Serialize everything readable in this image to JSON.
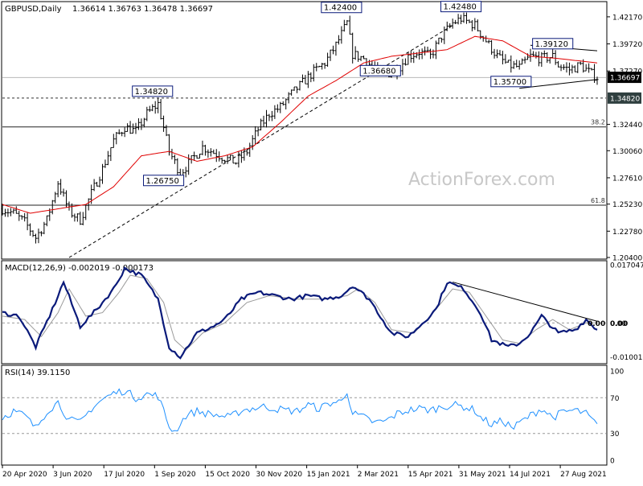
{
  "header": {
    "symbol": "GBPUSD,Daily",
    "ohlc": "1.36614 1.36763 1.36478 1.36697"
  },
  "watermark": "ActionForex.com",
  "colors": {
    "candle": "#000000",
    "ma": "#e00000",
    "macd": "#0a1a7a",
    "signal": "#9a9a9a",
    "rsi": "#1e90ff",
    "label_border": "#0a1a7a",
    "grid_dash": "#333333"
  },
  "chart_data": [
    {
      "type": "candlestick",
      "ylim": [
        1.204,
        1.434
      ],
      "yticks": [
        "1.42170",
        "1.39720",
        "1.37270",
        "1.32440",
        "1.30060",
        "1.27610",
        "1.25230",
        "1.22780",
        "1.20400"
      ],
      "current_price": {
        "label": "1.36697",
        "value": 1.36697
      },
      "levels": [
        {
          "value": 1.3482,
          "label": "1.34820",
          "style": "dashed"
        },
        {
          "value": 1.3668,
          "label": "",
          "style": "solid-grey"
        },
        {
          "value": 1.3221,
          "label": "38.2",
          "style": "solid"
        },
        {
          "value": 1.2513,
          "label": "61.8",
          "style": "solid"
        }
      ],
      "annotations": [
        {
          "text": "1.42400",
          "x": 122,
          "y": 1.424
        },
        {
          "text": "1.42480",
          "x": 165,
          "y": 1.4248
        },
        {
          "text": "1.39120",
          "x": 198,
          "y": 1.3912
        },
        {
          "text": "1.36680",
          "x": 136,
          "y": 1.3668
        },
        {
          "text": "1.35700",
          "x": 183,
          "y": 1.357
        },
        {
          "text": "1.34820",
          "x": 54,
          "y": 1.3482
        },
        {
          "text": "1.26750",
          "x": 58,
          "y": 1.2675
        }
      ],
      "close_anchors": [
        [
          0,
          1.248
        ],
        [
          4,
          1.244
        ],
        [
          8,
          1.236
        ],
        [
          12,
          1.222
        ],
        [
          16,
          1.238
        ],
        [
          20,
          1.272
        ],
        [
          24,
          1.246
        ],
        [
          28,
          1.238
        ],
        [
          32,
          1.262
        ],
        [
          36,
          1.284
        ],
        [
          40,
          1.31
        ],
        [
          44,
          1.322
        ],
        [
          48,
          1.318
        ],
        [
          52,
          1.334
        ],
        [
          56,
          1.343
        ],
        [
          60,
          1.3
        ],
        [
          64,
          1.28
        ],
        [
          68,
          1.292
        ],
        [
          72,
          1.304
        ],
        [
          76,
          1.299
        ],
        [
          80,
          1.294
        ],
        [
          84,
          1.29
        ],
        [
          88,
          1.3
        ],
        [
          92,
          1.32
        ],
        [
          96,
          1.334
        ],
        [
          100,
          1.34
        ],
        [
          104,
          1.352
        ],
        [
          108,
          1.362
        ],
        [
          112,
          1.372
        ],
        [
          116,
          1.38
        ],
        [
          120,
          1.396
        ],
        [
          124,
          1.416
        ],
        [
          126,
          1.388
        ],
        [
          130,
          1.384
        ],
        [
          134,
          1.374
        ],
        [
          138,
          1.37
        ],
        [
          142,
          1.374
        ],
        [
          146,
          1.386
        ],
        [
          150,
          1.39
        ],
        [
          154,
          1.386
        ],
        [
          158,
          1.404
        ],
        [
          162,
          1.416
        ],
        [
          165,
          1.42
        ],
        [
          170,
          1.414
        ],
        [
          174,
          1.4
        ],
        [
          178,
          1.386
        ],
        [
          182,
          1.378
        ],
        [
          186,
          1.376
        ],
        [
          190,
          1.386
        ],
        [
          194,
          1.384
        ],
        [
          198,
          1.386
        ],
        [
          200,
          1.378
        ],
        [
          204,
          1.374
        ],
        [
          208,
          1.378
        ],
        [
          212,
          1.37
        ],
        [
          214,
          1.367
        ]
      ],
      "ma_anchors": [
        [
          0,
          1.252
        ],
        [
          10,
          1.244
        ],
        [
          20,
          1.248
        ],
        [
          30,
          1.252
        ],
        [
          40,
          1.268
        ],
        [
          50,
          1.296
        ],
        [
          60,
          1.3
        ],
        [
          70,
          1.291
        ],
        [
          80,
          1.296
        ],
        [
          90,
          1.304
        ],
        [
          100,
          1.326
        ],
        [
          110,
          1.35
        ],
        [
          120,
          1.364
        ],
        [
          130,
          1.38
        ],
        [
          140,
          1.386
        ],
        [
          150,
          1.389
        ],
        [
          160,
          1.392
        ],
        [
          170,
          1.404
        ],
        [
          180,
          1.4
        ],
        [
          190,
          1.386
        ],
        [
          200,
          1.384
        ],
        [
          214,
          1.38
        ]
      ],
      "channel_lines": [
        {
          "from": [
            24,
            1.204
          ],
          "to": [
            162,
            1.414
          ],
          "style": "dashed"
        },
        {
          "from": [
            190,
            1.396
          ],
          "to": [
            214,
            1.391
          ],
          "style": "solid"
        },
        {
          "from": [
            186,
            1.357
          ],
          "to": [
            214,
            1.365
          ],
          "style": "solid"
        }
      ]
    },
    {
      "type": "line",
      "title": "MACD(12,26,9) -0.002019 -0.000173",
      "ylim": [
        -0.0115,
        0.0178
      ],
      "yticks": [
        {
          "value": 0.017047,
          "label": "0.017047"
        },
        {
          "value": 0.0,
          "label": "0.00"
        },
        {
          "value": -0.010013,
          "label": "-0.010013"
        }
      ],
      "zero_labels": [
        "0.00",
        "0.00"
      ],
      "macd_anchors": [
        [
          0,
          0.003
        ],
        [
          6,
          0.002
        ],
        [
          12,
          -0.007
        ],
        [
          18,
          0.004
        ],
        [
          22,
          0.012
        ],
        [
          28,
          -0.001
        ],
        [
          34,
          0.004
        ],
        [
          40,
          0.01
        ],
        [
          44,
          0.016
        ],
        [
          50,
          0.014
        ],
        [
          56,
          0.007
        ],
        [
          60,
          -0.007
        ],
        [
          64,
          -0.01
        ],
        [
          70,
          -0.003
        ],
        [
          76,
          -0.001
        ],
        [
          80,
          0.001
        ],
        [
          86,
          0.007
        ],
        [
          92,
          0.009
        ],
        [
          98,
          0.008
        ],
        [
          104,
          0.007
        ],
        [
          110,
          0.008
        ],
        [
          116,
          0.007
        ],
        [
          122,
          0.008
        ],
        [
          126,
          0.011
        ],
        [
          132,
          0.007
        ],
        [
          136,
          0.002
        ],
        [
          140,
          -0.003
        ],
        [
          146,
          -0.004
        ],
        [
          150,
          -0.001
        ],
        [
          156,
          0.004
        ],
        [
          160,
          0.012
        ],
        [
          166,
          0.01
        ],
        [
          172,
          0.003
        ],
        [
          176,
          -0.005
        ],
        [
          182,
          -0.007
        ],
        [
          186,
          -0.006
        ],
        [
          190,
          -0.003
        ],
        [
          194,
          0.002
        ],
        [
          200,
          -0.003
        ],
        [
          206,
          -0.002
        ],
        [
          210,
          0.001
        ],
        [
          214,
          -0.002
        ]
      ],
      "signal_anchors": [
        [
          0,
          0.002
        ],
        [
          8,
          0.001
        ],
        [
          14,
          -0.004
        ],
        [
          20,
          0.003
        ],
        [
          24,
          0.01
        ],
        [
          30,
          0.002
        ],
        [
          36,
          0.003
        ],
        [
          42,
          0.009
        ],
        [
          46,
          0.014
        ],
        [
          52,
          0.013
        ],
        [
          58,
          0.006
        ],
        [
          62,
          -0.005
        ],
        [
          66,
          -0.008
        ],
        [
          72,
          -0.003
        ],
        [
          80,
          0.0
        ],
        [
          88,
          0.006
        ],
        [
          96,
          0.008
        ],
        [
          106,
          0.007
        ],
        [
          116,
          0.007
        ],
        [
          124,
          0.008
        ],
        [
          128,
          0.01
        ],
        [
          134,
          0.006
        ],
        [
          140,
          -0.002
        ],
        [
          148,
          -0.003
        ],
        [
          154,
          0.002
        ],
        [
          162,
          0.01
        ],
        [
          168,
          0.009
        ],
        [
          174,
          0.002
        ],
        [
          180,
          -0.005
        ],
        [
          186,
          -0.006
        ],
        [
          192,
          -0.002
        ],
        [
          198,
          0.001
        ],
        [
          204,
          -0.002
        ],
        [
          210,
          0.0
        ],
        [
          214,
          0.0
        ]
      ],
      "trendline": {
        "from": [
          162,
          0.012
        ],
        "to": [
          214,
          0.0005
        ]
      }
    },
    {
      "type": "line",
      "title": "RSI(14) 39.1150",
      "ylim": [
        0,
        100
      ],
      "yticks": [
        {
          "value": 100,
          "label": "100"
        },
        {
          "value": 70,
          "label": "70"
        },
        {
          "value": 30,
          "label": "30"
        },
        {
          "value": 0,
          "label": "0"
        }
      ],
      "levels": [
        70,
        30
      ],
      "rsi_anchors": [
        [
          0,
          48
        ],
        [
          4,
          55
        ],
        [
          8,
          50
        ],
        [
          12,
          36
        ],
        [
          16,
          55
        ],
        [
          20,
          65
        ],
        [
          24,
          45
        ],
        [
          28,
          42
        ],
        [
          32,
          58
        ],
        [
          36,
          68
        ],
        [
          40,
          75
        ],
        [
          44,
          78
        ],
        [
          48,
          70
        ],
        [
          52,
          74
        ],
        [
          56,
          72
        ],
        [
          60,
          38
        ],
        [
          62,
          32
        ],
        [
          66,
          50
        ],
        [
          70,
          55
        ],
        [
          74,
          52
        ],
        [
          78,
          50
        ],
        [
          82,
          48
        ],
        [
          86,
          56
        ],
        [
          90,
          58
        ],
        [
          94,
          60
        ],
        [
          98,
          58
        ],
        [
          102,
          56
        ],
        [
          106,
          55
        ],
        [
          110,
          62
        ],
        [
          114,
          58
        ],
        [
          118,
          64
        ],
        [
          122,
          66
        ],
        [
          124,
          78
        ],
        [
          126,
          52
        ],
        [
          130,
          48
        ],
        [
          134,
          42
        ],
        [
          138,
          44
        ],
        [
          142,
          52
        ],
        [
          146,
          56
        ],
        [
          150,
          58
        ],
        [
          154,
          56
        ],
        [
          158,
          60
        ],
        [
          162,
          62
        ],
        [
          166,
          60
        ],
        [
          170,
          56
        ],
        [
          172,
          48
        ],
        [
          176,
          40
        ],
        [
          180,
          44
        ],
        [
          184,
          36
        ],
        [
          186,
          42
        ],
        [
          190,
          50
        ],
        [
          194,
          58
        ],
        [
          198,
          48
        ],
        [
          202,
          54
        ],
        [
          206,
          56
        ],
        [
          210,
          52
        ],
        [
          214,
          39
        ]
      ]
    }
  ],
  "x_axis": {
    "labels": [
      "20 Apr 2020",
      "3 Jun 2020",
      "17 Jul 2020",
      "1 Sep 2020",
      "15 Oct 2020",
      "30 Nov 2020",
      "15 Jan 2021",
      "2 Mar 2021",
      "15 Apr 2021",
      "31 May 2021",
      "14 Jul 2021",
      "27 Aug 2021"
    ]
  }
}
